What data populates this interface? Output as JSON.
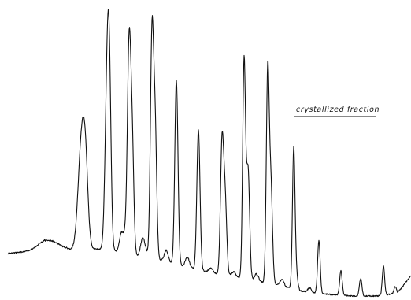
{
  "chart_data": {
    "type": "line",
    "title": "",
    "xlabel": "",
    "ylabel": "",
    "grid": false,
    "legend": "none",
    "annotations": [
      {
        "text": "crystallized fraction",
        "underlined": true
      }
    ],
    "line_color": "#111111",
    "series": [
      {
        "baseline": [
          [
            10,
            322
          ],
          [
            40,
            319
          ],
          [
            55,
            316
          ],
          [
            80,
            316
          ],
          [
            95,
            318
          ],
          [
            120,
            316
          ],
          [
            150,
            320
          ],
          [
            180,
            326
          ],
          [
            210,
            332
          ],
          [
            240,
            340
          ],
          [
            270,
            347
          ],
          [
            300,
            352
          ],
          [
            330,
            358
          ],
          [
            360,
            364
          ],
          [
            390,
            371
          ],
          [
            420,
            374
          ],
          [
            450,
            376
          ],
          [
            480,
            376
          ],
          [
            505,
            372
          ],
          [
            522,
            350
          ]
        ],
        "peaks": [
          {
            "x": 61,
            "top": 305,
            "width": 12
          },
          {
            "x": 102,
            "top": 240,
            "width": 4
          },
          {
            "x": 106,
            "top": 228,
            "width": 4
          },
          {
            "x": 109,
            "top": 262,
            "width": 3
          },
          {
            "x": 136,
            "top": 115,
            "width": 2.6
          },
          {
            "x": 139,
            "top": 150,
            "width": 2.2
          },
          {
            "x": 154,
            "top": 298,
            "width": 2.5
          },
          {
            "x": 159,
            "top": 302,
            "width": 2.5
          },
          {
            "x": 164,
            "top": 58,
            "width": 2.2
          },
          {
            "x": 168,
            "top": 195,
            "width": 2
          },
          {
            "x": 181,
            "top": 304,
            "width": 2.5
          },
          {
            "x": 185,
            "top": 320,
            "width": 2.5
          },
          {
            "x": 193,
            "top": 47,
            "width": 2
          },
          {
            "x": 197,
            "top": 165,
            "width": 2
          },
          {
            "x": 211,
            "top": 318,
            "width": 2.5
          },
          {
            "x": 224,
            "top": 102,
            "width": 2
          },
          {
            "x": 238,
            "top": 326,
            "width": 2.5
          },
          {
            "x": 252,
            "top": 165,
            "width": 2
          },
          {
            "x": 268,
            "top": 340,
            "width": 2.5
          },
          {
            "x": 282,
            "top": 181,
            "width": 2
          },
          {
            "x": 286,
            "top": 258,
            "width": 2
          },
          {
            "x": 297,
            "top": 345,
            "width": 2.5
          },
          {
            "x": 310,
            "top": 76,
            "width": 1.8
          },
          {
            "x": 315,
            "top": 215,
            "width": 2
          },
          {
            "x": 326,
            "top": 348,
            "width": 2.5
          },
          {
            "x": 340,
            "top": 94,
            "width": 1.8
          },
          {
            "x": 344,
            "top": 235,
            "width": 2
          },
          {
            "x": 358,
            "top": 355,
            "width": 2.5
          },
          {
            "x": 373,
            "top": 192,
            "width": 1.6
          },
          {
            "x": 376,
            "top": 345,
            "width": 1.8
          },
          {
            "x": 393,
            "top": 365,
            "width": 2
          },
          {
            "x": 405,
            "top": 305,
            "width": 1.6
          },
          {
            "x": 433,
            "top": 344,
            "width": 1.6
          },
          {
            "x": 458,
            "top": 354,
            "width": 1.6
          },
          {
            "x": 487,
            "top": 338,
            "width": 1.5
          },
          {
            "x": 502,
            "top": 364,
            "width": 1.5
          }
        ]
      }
    ]
  }
}
